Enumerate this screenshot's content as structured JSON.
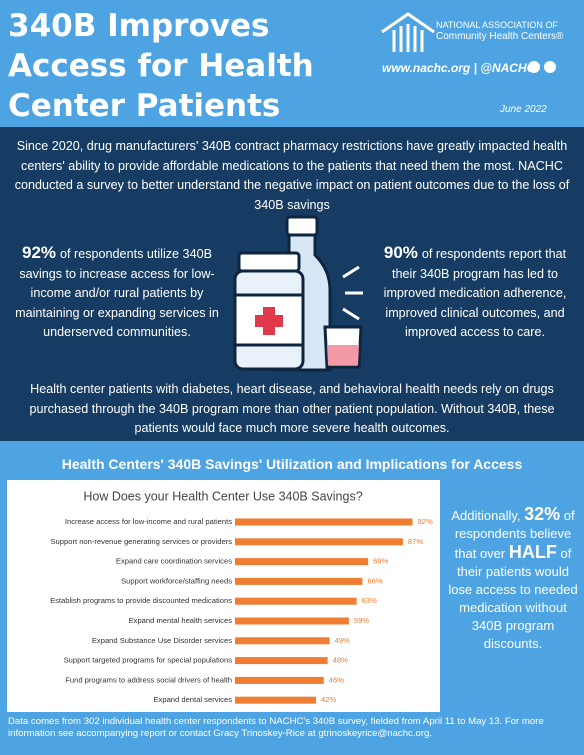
{
  "header": {
    "title": [
      "340B Improves",
      "Access for Health",
      "Center Patients"
    ],
    "org_name": [
      "NATIONAL ASSOCIATION OF",
      "Community Health Centers®"
    ],
    "links": "www.nachc.org | @NACHC",
    "date": "June 2022"
  },
  "intro": "Since 2020, drug manufacturers' 340B contract pharmacy restrictions have greatly impacted health centers' ability to provide affordable medications to the patients that need them the most. NACHC conducted a survey to better understand the negative impact on patient outcomes due to the loss of 340B savings",
  "stats": [
    {
      "figure": "92%",
      "text": "of respondents utilize 340B savings to increase access for low-income and/or rural patients by maintaining or expanding services in underserved communities."
    },
    {
      "figure": "90%",
      "text": "of respondents report that their 340B program has led to improved medication adherence, improved clinical outcomes, and improved access to care."
    }
  ],
  "outcome": "Health center patients with diabetes, heart disease, and behavioral health needs rely on drugs purchased through the 340B program more than other patient population.  Without 340B, these patients would face much more severe health outcomes.",
  "section_title": "Health Centers' 340B Savings' Utilization and Implications for Access",
  "chart_data": {
    "type": "bar",
    "title": "How Does your Health Center Use 340B Savings?",
    "categories": [
      "Increase access for low-income and rural patients",
      "Support non-revenue generating services or providers",
      "Expand care coordination services",
      "Support workforce/staffing needs",
      "Establish programs to provide discounted medications",
      "Expand mental health services",
      "Expand Substance Use Disorder services",
      "Support targeted programs for special populations",
      "Fund programs to address social drivers of health",
      "Expand dental services"
    ],
    "values": [
      92,
      87,
      69,
      66,
      63,
      59,
      49,
      48,
      46,
      42
    ],
    "value_labels": [
      "92%",
      "87%",
      "69%",
      "66%",
      "63%",
      "59%",
      "49%",
      "48%",
      "46%",
      "42%"
    ],
    "color": "#ef7d32"
  },
  "sidebar": {
    "intro": "Additionally,",
    "figure": "32%",
    "text1": "of respondents believe that over",
    "emphasis": "HALF",
    "text2": "of their patients would lose access to needed medication without 340B program discounts."
  },
  "footer": "Data comes from 302 individual health center respondents to NACHC's 340B survey, fielded from April 11 to May 13.  For more information see accompanying report or contact Gracy Trinoskey-Rice at gtrinoskeyrice@nachc.org."
}
